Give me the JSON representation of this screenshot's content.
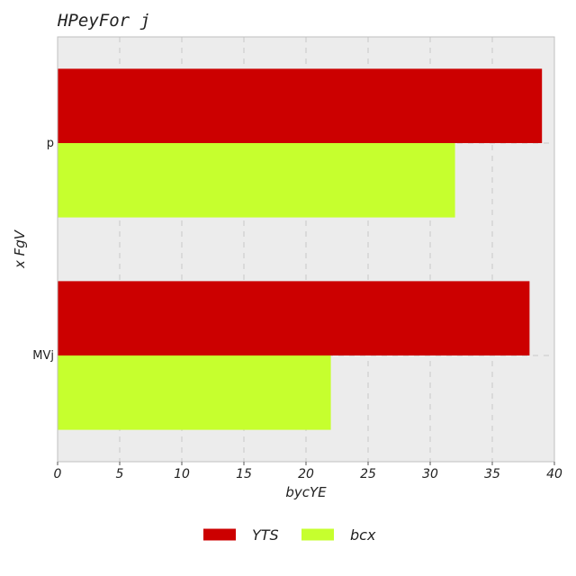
{
  "chart_data": {
    "type": "bar",
    "orientation": "horizontal",
    "title": "HPeyFor j",
    "xlabel": "bycYE",
    "ylabel": "x FgV",
    "categories": [
      "p",
      "MVj"
    ],
    "series": [
      {
        "name": "YTS",
        "values": [
          39,
          38
        ],
        "color": "#cc0000"
      },
      {
        "name": "bcx",
        "values": [
          32,
          22
        ],
        "color": "#c6ff2e"
      }
    ],
    "xlim": [
      0,
      40
    ],
    "xticks": [
      0,
      5,
      10,
      15,
      20,
      25,
      30,
      35,
      40
    ],
    "grid": true,
    "legend_position": "bottom"
  },
  "colors": {
    "plot_background": "#ececec",
    "grid": "#c8c8c8",
    "frame": "#bfbfbf"
  }
}
